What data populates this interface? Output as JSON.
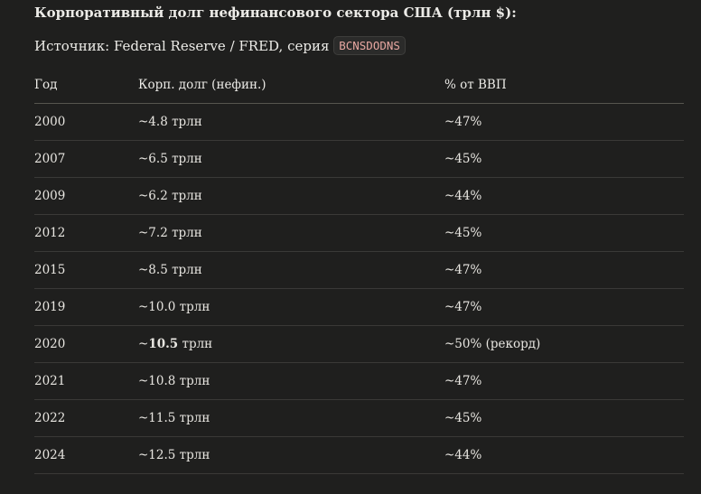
{
  "title": "Корпоративный долг нефинансового сектора США (трлн $):",
  "source": {
    "prefix": "Источник: Federal Reserve / FRED, серия",
    "series_code": "BCNSDODNS"
  },
  "table": {
    "headers": [
      "Год",
      "Корп. долг (нефин.)",
      "% от ВВП"
    ],
    "rows": [
      {
        "year": "2000",
        "debt": "~4.8 трлн",
        "gdp": "~47%"
      },
      {
        "year": "2007",
        "debt": "~6.5 трлн",
        "gdp": "~45%"
      },
      {
        "year": "2009",
        "debt": "~6.2 трлн",
        "gdp": "~44%"
      },
      {
        "year": "2012",
        "debt": "~7.2 трлн",
        "gdp": "~45%"
      },
      {
        "year": "2015",
        "debt": "~8.5 трлн",
        "gdp": "~47%"
      },
      {
        "year": "2019",
        "debt": "~10.0 трлн",
        "gdp": "~47%"
      },
      {
        "year": "2020",
        "debt_prefix": "~",
        "debt_bold": "10.5",
        "debt_suffix": " трлн",
        "gdp": "~50% (рекорд)"
      },
      {
        "year": "2021",
        "debt": "~10.8 трлн",
        "gdp": "~47%"
      },
      {
        "year": "2022",
        "debt": "~11.5 трлн",
        "gdp": "~45%"
      },
      {
        "year": "2024",
        "debt": "~12.5 трлн",
        "gdp": "~44%"
      }
    ]
  }
}
